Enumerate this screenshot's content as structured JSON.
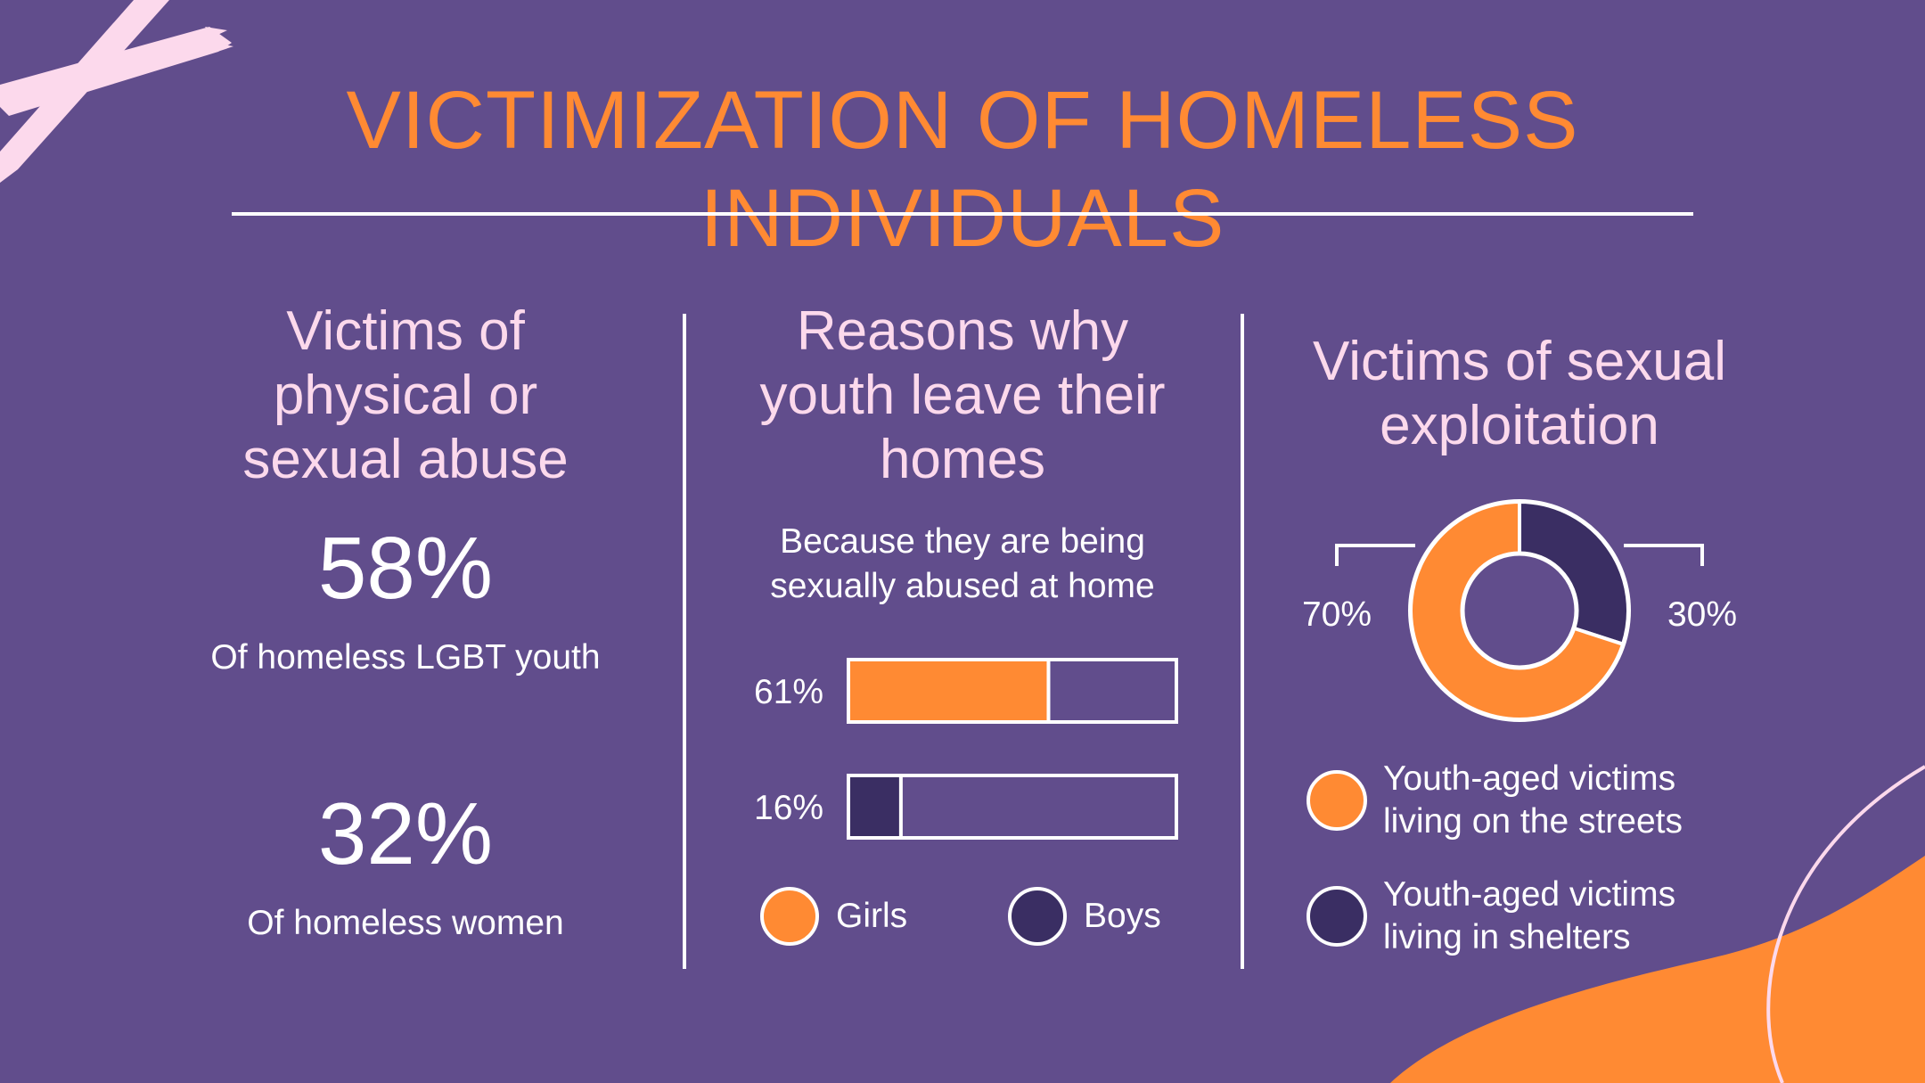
{
  "title": "VICTIMIZATION OF HOMELESS INDIVIDUALS",
  "left_panel": {
    "heading": "Victims of physical or sexual abuse",
    "stat1_value": "58%",
    "stat1_caption": "Of homeless LGBT youth",
    "stat2_value": "32%",
    "stat2_caption": "Of homeless women"
  },
  "middle_panel": {
    "heading": "Reasons why youth leave their homes",
    "subtitle": "Because they are being sexually abused at home",
    "legend": [
      "Girls",
      "Boys"
    ]
  },
  "right_panel": {
    "heading": "Victims of sexual exploitation",
    "legend": [
      "Youth-aged victims living on the streets",
      "Youth-aged victims living in shelters"
    ]
  },
  "colors": {
    "background": "#614d8c",
    "orange": "#ff8a33",
    "navy": "#3a2e63",
    "white": "#ffffff",
    "pink": "#fcd9ec"
  },
  "chart_data": [
    {
      "type": "bar",
      "orientation": "horizontal",
      "categories": [
        "Girls",
        "Boys"
      ],
      "values": [
        61,
        16
      ],
      "value_labels": [
        "61%",
        "16%"
      ],
      "xlim": [
        0,
        100
      ]
    },
    {
      "type": "pie",
      "style": "donut",
      "categories": [
        "Youth-aged victims living on the streets",
        "Youth-aged victims living in shelters"
      ],
      "values": [
        70,
        30
      ],
      "value_labels": [
        "70%",
        "30%"
      ]
    }
  ]
}
